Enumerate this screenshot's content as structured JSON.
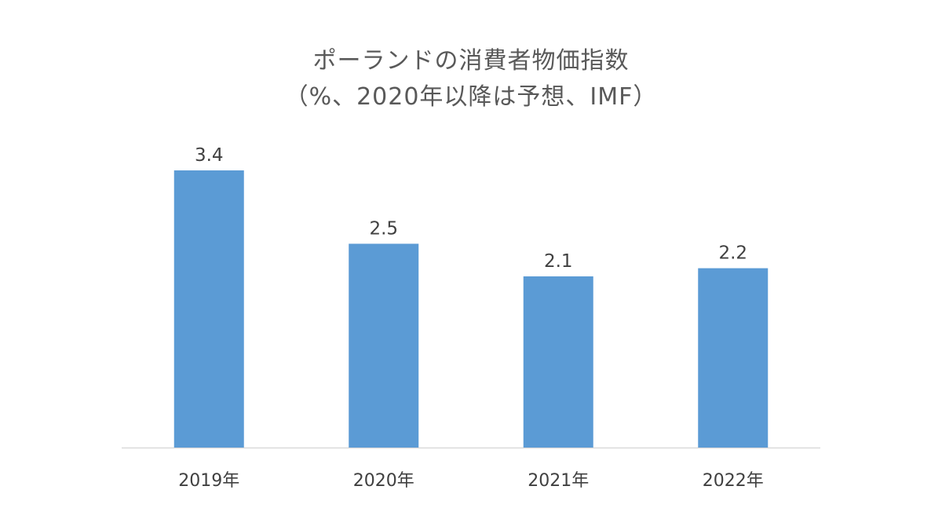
{
  "chart_data": {
    "type": "bar",
    "title": "ポーランドの消費者物価指数",
    "subtitle": "（%、2020年以降は予想、IMF）",
    "categories": [
      "2019年",
      "2020年",
      "2021年",
      "2022年"
    ],
    "values": [
      3.4,
      2.5,
      2.1,
      2.2
    ],
    "data_labels": [
      "3.4",
      "2.5",
      "2.1",
      "2.2"
    ],
    "xlabel": "",
    "ylabel": "",
    "ylim": [
      0,
      4
    ],
    "grid": false,
    "legend": "none",
    "colors": {
      "bar": "#5B9BD5",
      "axis": "#D9D9D9",
      "text": "#595959"
    }
  }
}
